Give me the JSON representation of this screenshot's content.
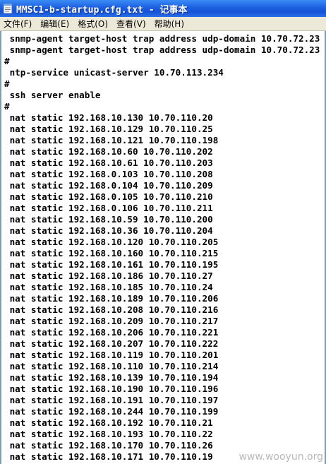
{
  "window": {
    "title": "MMSC1-b-startup.cfg.txt - 记事本",
    "icon": "notepad-icon"
  },
  "menu": [
    "文件(F)",
    "编辑(E)",
    "格式(O)",
    "查看(V)",
    "帮助(H)"
  ],
  "lines": [
    " snmp-agent target-host trap address udp-domain 10.70.72.23",
    " snmp-agent target-host trap address udp-domain 10.70.72.23",
    "#",
    " ntp-service unicast-server 10.70.113.234",
    "#",
    " ssh server enable",
    "#",
    " nat static 192.168.10.130 10.70.110.20",
    " nat static 192.168.10.129 10.70.110.25",
    " nat static 192.168.10.121 10.70.110.198",
    " nat static 192.168.10.60 10.70.110.202",
    " nat static 192.168.10.61 10.70.110.203",
    " nat static 192.168.0.103 10.70.110.208",
    " nat static 192.168.0.104 10.70.110.209",
    " nat static 192.168.0.105 10.70.110.210",
    " nat static 192.168.0.106 10.70.110.211",
    " nat static 192.168.10.59 10.70.110.200",
    " nat static 192.168.10.36 10.70.110.204",
    " nat static 192.168.10.120 10.70.110.205",
    " nat static 192.168.10.160 10.70.110.215",
    " nat static 192.168.10.161 10.70.110.195",
    " nat static 192.168.10.186 10.70.110.27",
    " nat static 192.168.10.185 10.70.110.24",
    " nat static 192.168.10.189 10.70.110.206",
    " nat static 192.168.10.208 10.70.110.216",
    " nat static 192.168.10.209 10.70.110.217",
    " nat static 192.168.10.206 10.70.110.221",
    " nat static 192.168.10.207 10.70.110.222",
    " nat static 192.168.10.119 10.70.110.201",
    " nat static 192.168.10.110 10.70.110.214",
    " nat static 192.168.10.139 10.70.110.194",
    " nat static 192.168.10.190 10.70.110.196",
    " nat static 192.168.10.191 10.70.110.197",
    " nat static 192.168.10.244 10.70.110.199",
    " nat static 192.168.10.192 10.70.110.21",
    " nat static 192.168.10.193 10.70.110.22",
    " nat static 192.168.10.170 10.70.110.26",
    " nat static 192.168.10.171 10.70.110.19"
  ],
  "watermark": "www.wooyun.org"
}
